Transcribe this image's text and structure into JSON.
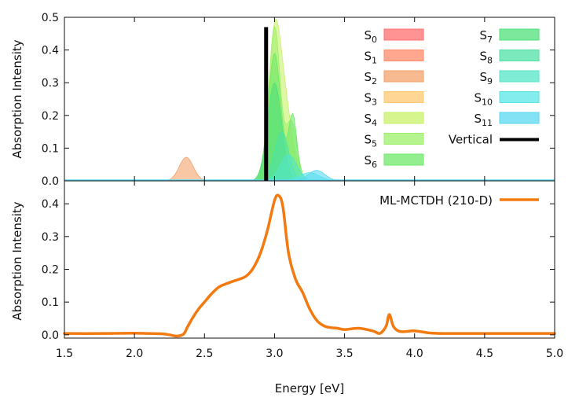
{
  "chart_data": [
    {
      "type": "area",
      "panel": "top",
      "ylabel": "Absorption Intensity",
      "xlim": [
        1.5,
        5.0
      ],
      "ylim": [
        0.0,
        0.5
      ],
      "yticks": [
        "0.0",
        "0.1",
        "0.2",
        "0.3",
        "0.4",
        "0.5"
      ],
      "series": [
        {
          "name": "S",
          "sub": "0",
          "color": "#ff6f6f",
          "peaks": [
            [
              3.0,
              0.02,
              0.05
            ]
          ]
        },
        {
          "name": "S",
          "sub": "1",
          "color": "#ff8a6a",
          "peaks": [
            [
              3.0,
              0.03,
              0.05
            ]
          ]
        },
        {
          "name": "S",
          "sub": "2",
          "color": "#f4a26a",
          "peaks": [
            [
              2.37,
              0.072,
              0.05
            ]
          ]
        },
        {
          "name": "S",
          "sub": "3",
          "color": "#ffc870",
          "peaks": [
            [
              3.0,
              0.04,
              0.05
            ]
          ]
        },
        {
          "name": "S",
          "sub": "4",
          "color": "#c8f26a",
          "peaks": [
            [
              3.0,
              0.43,
              0.045
            ],
            [
              3.08,
              0.2,
              0.05
            ]
          ]
        },
        {
          "name": "S",
          "sub": "5",
          "color": "#9ef06a",
          "peaks": [
            [
              3.0,
              0.47,
              0.04
            ],
            [
              3.12,
              0.18,
              0.04
            ]
          ]
        },
        {
          "name": "S",
          "sub": "6",
          "color": "#6fe86a",
          "peaks": [
            [
              3.0,
              0.39,
              0.045
            ],
            [
              3.13,
              0.2,
              0.03
            ]
          ]
        },
        {
          "name": "S",
          "sub": "7",
          "color": "#4fe07a",
          "peaks": [
            [
              3.0,
              0.3,
              0.05
            ]
          ]
        },
        {
          "name": "S",
          "sub": "8",
          "color": "#4fe2a6",
          "peaks": [
            [
              3.05,
              0.15,
              0.05
            ]
          ]
        },
        {
          "name": "S",
          "sub": "9",
          "color": "#54e6c8",
          "peaks": [
            [
              3.1,
              0.08,
              0.06
            ]
          ]
        },
        {
          "name": "S",
          "sub": "10",
          "color": "#5ae6e6",
          "peaks": [
            [
              3.25,
              0.025,
              0.07
            ]
          ]
        },
        {
          "name": "S",
          "sub": "11",
          "color": "#5ad8f0",
          "peaks": [
            [
              3.3,
              0.032,
              0.06
            ]
          ]
        }
      ],
      "vertical": {
        "name": "Vertical",
        "x": 2.94,
        "y": 0.47,
        "color": "#000000"
      }
    },
    {
      "type": "line",
      "panel": "bottom",
      "xlabel": "Energy [eV]",
      "ylabel": "Absorption Intensity",
      "xlim": [
        1.5,
        5.0
      ],
      "ylim": [
        -0.01,
        0.47
      ],
      "xticks": [
        "1.5",
        "2.0",
        "2.5",
        "3.0",
        "3.5",
        "4.0",
        "4.5",
        "5.0"
      ],
      "yticks": [
        "0.0",
        "0.1",
        "0.2",
        "0.3",
        "0.4"
      ],
      "series": [
        {
          "name": "ML-MCTDH (210-D)",
          "color": "#f27a10",
          "x": [
            1.5,
            1.8,
            2.0,
            2.1,
            2.2,
            2.25,
            2.3,
            2.35,
            2.38,
            2.42,
            2.46,
            2.5,
            2.55,
            2.6,
            2.65,
            2.7,
            2.75,
            2.8,
            2.85,
            2.9,
            2.95,
            3.0,
            3.03,
            3.06,
            3.1,
            3.15,
            3.2,
            3.25,
            3.3,
            3.35,
            3.4,
            3.45,
            3.5,
            3.6,
            3.7,
            3.75,
            3.78,
            3.8,
            3.82,
            3.85,
            3.9,
            4.0,
            4.1,
            4.2,
            4.5,
            5.0
          ],
          "y": [
            0.004,
            0.004,
            0.005,
            0.004,
            0.003,
            0.0,
            -0.004,
            0.002,
            0.025,
            0.055,
            0.08,
            0.1,
            0.125,
            0.145,
            0.155,
            0.163,
            0.17,
            0.18,
            0.205,
            0.25,
            0.32,
            0.41,
            0.425,
            0.39,
            0.25,
            0.17,
            0.13,
            0.08,
            0.045,
            0.028,
            0.022,
            0.02,
            0.016,
            0.02,
            0.012,
            0.004,
            0.015,
            0.03,
            0.062,
            0.025,
            0.01,
            0.012,
            0.006,
            0.004,
            0.004,
            0.004
          ]
        }
      ]
    }
  ]
}
